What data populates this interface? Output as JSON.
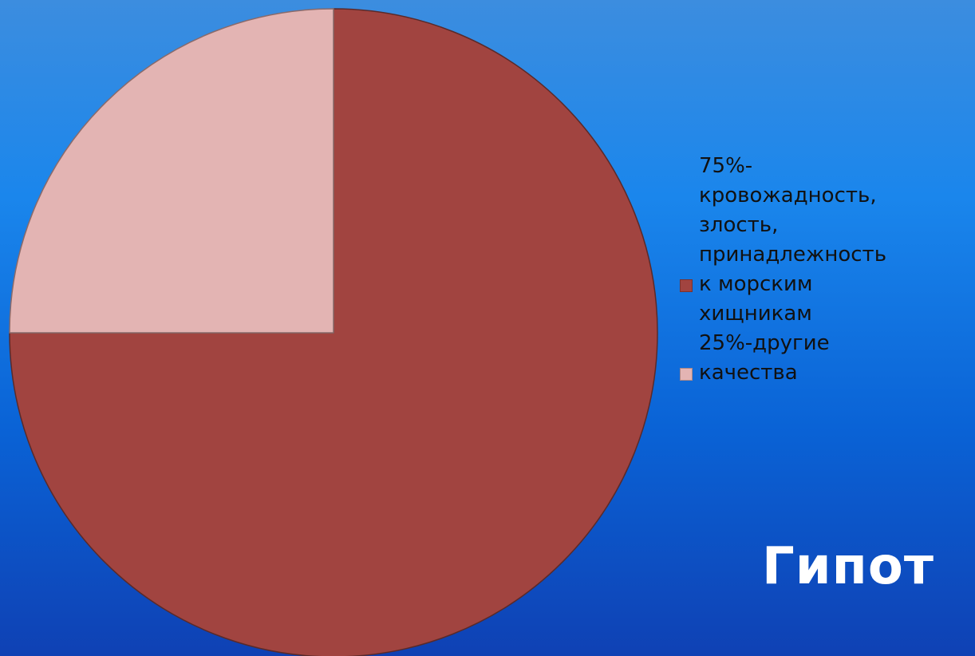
{
  "chart_data": {
    "type": "pie",
    "slices": [
      {
        "label": "75%-\nкровожадность,\nзлость,\nпринадлежность\nк морским\nхищникам",
        "value": 75,
        "color": "#a14440"
      },
      {
        "label": "25%-другие\nкачества",
        "value": 25,
        "color": "#e3b4b3"
      }
    ],
    "legend_position": "right"
  },
  "title_fragment": "Гипот"
}
